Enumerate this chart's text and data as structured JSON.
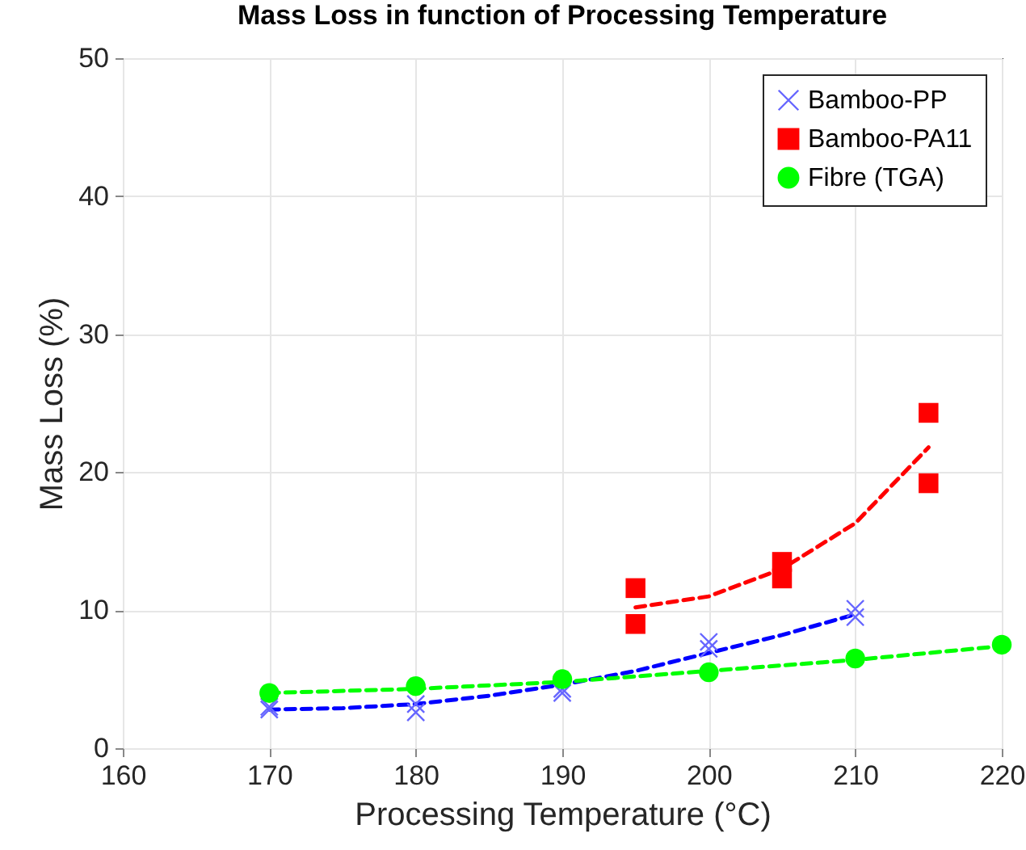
{
  "chart_data": {
    "type": "scatter",
    "title": "Mass Loss in function of Processing Temperature",
    "xlabel": "Processing Temperature (°C)",
    "ylabel": "Mass Loss (%)",
    "xlim": [
      160,
      220
    ],
    "xticks": [
      160,
      170,
      180,
      190,
      200,
      210,
      220
    ],
    "ylim": [
      0,
      50
    ],
    "yticks": [
      0,
      10,
      20,
      30,
      40,
      50
    ],
    "grid": true,
    "legend": "top right",
    "series": [
      {
        "name": "Bamboo-PP",
        "color": "#6666ff",
        "marker": "cross",
        "x": [
          170,
          170,
          180,
          180,
          190,
          190,
          200,
          200,
          210,
          210
        ],
        "values": [
          2.8,
          3.0,
          2.6,
          3.2,
          4.0,
          4.3,
          7.2,
          7.7,
          9.5,
          10.1
        ]
      },
      {
        "name": "Bamboo-PA11",
        "color": "#ff0000",
        "marker": "square",
        "x": [
          195,
          195,
          205,
          205,
          215,
          215
        ],
        "values": [
          11.6,
          9.0,
          13.5,
          12.3,
          24.3,
          19.2
        ]
      },
      {
        "name": "Fibre (TGA)",
        "color": "#00ff00",
        "marker": "circle",
        "x": [
          170,
          180,
          190,
          200,
          210,
          220
        ],
        "values": [
          4.0,
          4.5,
          5.0,
          5.5,
          6.5,
          7.5
        ]
      },
      {
        "type": "line",
        "color": "#0000ff",
        "line_style": "dashed",
        "x": [
          170,
          175,
          180,
          185,
          190,
          195,
          200,
          205,
          210
        ],
        "values": [
          2.8,
          2.9,
          3.2,
          3.8,
          4.6,
          5.6,
          6.9,
          8.2,
          9.7
        ]
      },
      {
        "type": "line",
        "color": "#ff0000",
        "line_style": "dashed",
        "x": [
          195,
          200,
          205,
          210,
          215
        ],
        "values": [
          10.2,
          11.0,
          13.0,
          16.3,
          21.8
        ]
      },
      {
        "type": "line",
        "color": "#00ff00",
        "line_style": "dashed",
        "x": [
          170,
          180,
          190,
          200,
          210,
          220
        ],
        "values": [
          4.0,
          4.3,
          4.8,
          5.6,
          6.4,
          7.4
        ]
      }
    ]
  }
}
